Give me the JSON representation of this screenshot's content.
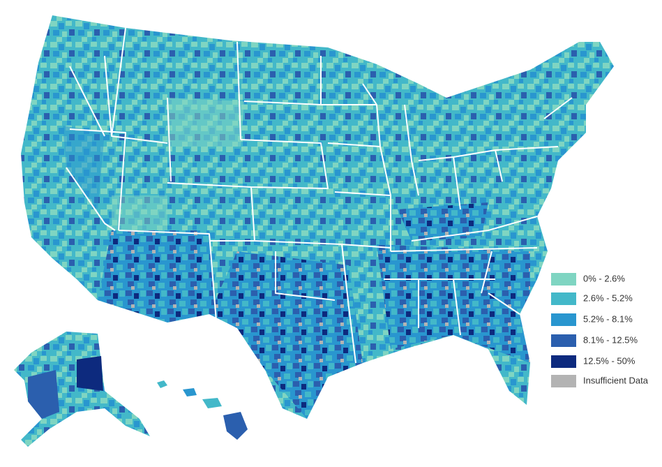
{
  "legend": {
    "items": [
      {
        "label": "0% - 2.6%",
        "color": "#7fd5c2"
      },
      {
        "label": "2.6% - 5.2%",
        "color": "#43b8c9"
      },
      {
        "label": "5.2% - 8.1%",
        "color": "#2996cf"
      },
      {
        "label": "8.1% - 12.5%",
        "color": "#2b5fae"
      },
      {
        "label": "12.5% - 50%",
        "color": "#0d2a7e"
      },
      {
        "label": "Insufficient Data",
        "color": "#b3b3b3"
      }
    ]
  }
}
